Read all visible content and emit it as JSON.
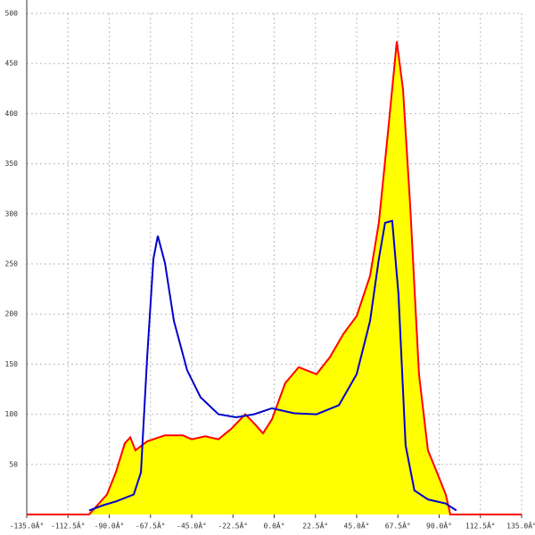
{
  "chart_data": {
    "type": "area-line",
    "xlim": [
      -135,
      135
    ],
    "ylim": [
      0,
      500
    ],
    "xticks": [
      {
        "value": -135,
        "label": "-135.0Â°"
      },
      {
        "value": -112.5,
        "label": "-112.5Â°"
      },
      {
        "value": -90,
        "label": "-90.0Â°"
      },
      {
        "value": -67.5,
        "label": "-67.5Â°"
      },
      {
        "value": -45,
        "label": "-45.0Â°"
      },
      {
        "value": -22.5,
        "label": "-22.5Â°"
      },
      {
        "value": 0,
        "label": "0.0Â°"
      },
      {
        "value": 22.5,
        "label": "22.5Â°"
      },
      {
        "value": 45,
        "label": "45.0Â°"
      },
      {
        "value": 67.5,
        "label": "67.5Â°"
      },
      {
        "value": 90,
        "label": "90.0Â°"
      },
      {
        "value": 112.5,
        "label": "112.5Â°"
      },
      {
        "value": 135,
        "label": "135.0Â°"
      }
    ],
    "yticks": [
      50,
      100,
      150,
      200,
      250,
      300,
      350,
      400,
      450,
      500
    ],
    "grid": true,
    "series": [
      {
        "color": "#ff0000",
        "fill": "#ffff00",
        "x": [
          -135,
          -101,
          -91.2,
          -86.4,
          -81.5,
          -78.5,
          -75.7,
          -69.3,
          -59.6,
          -49.9,
          -45,
          -37.7,
          -30.4,
          -23.1,
          -15.8,
          -11,
          -6.1,
          -1.2,
          6,
          13.4,
          23.1,
          30.4,
          37.7,
          45,
          52.3,
          57.1,
          62,
          66.9,
          70.3,
          74.2,
          79,
          83.9,
          88.8,
          93.6,
          96.1,
          135
        ],
        "values": [
          0,
          0,
          20,
          42,
          71,
          77,
          64,
          73,
          79,
          79,
          75,
          78,
          75,
          86,
          100,
          91,
          81,
          95,
          131,
          147,
          140,
          157,
          180,
          198,
          238,
          291,
          380,
          472,
          424,
          308,
          140,
          64,
          42,
          20,
          0,
          0
        ]
      },
      {
        "color": "#0000cc",
        "x": [
          -101,
          -93.7,
          -86.4,
          -76.6,
          -72.7,
          -69.3,
          -65.9,
          -63.5,
          -59.6,
          -54.7,
          -47.5,
          -40.2,
          -30.4,
          -20.7,
          -11,
          -1.2,
          10.9,
          23.1,
          35.3,
          45,
          52.3,
          57.1,
          60.5,
          64.4,
          67.8,
          71.7,
          76.5,
          83.9,
          93.6,
          99.4
        ],
        "values": [
          4,
          9,
          13,
          20,
          42,
          157,
          255,
          278,
          251,
          193,
          144,
          117,
          100,
          97,
          100,
          106,
          101,
          100,
          109,
          140,
          193,
          255,
          291,
          293,
          220,
          69,
          24,
          15,
          11,
          4
        ]
      }
    ]
  }
}
